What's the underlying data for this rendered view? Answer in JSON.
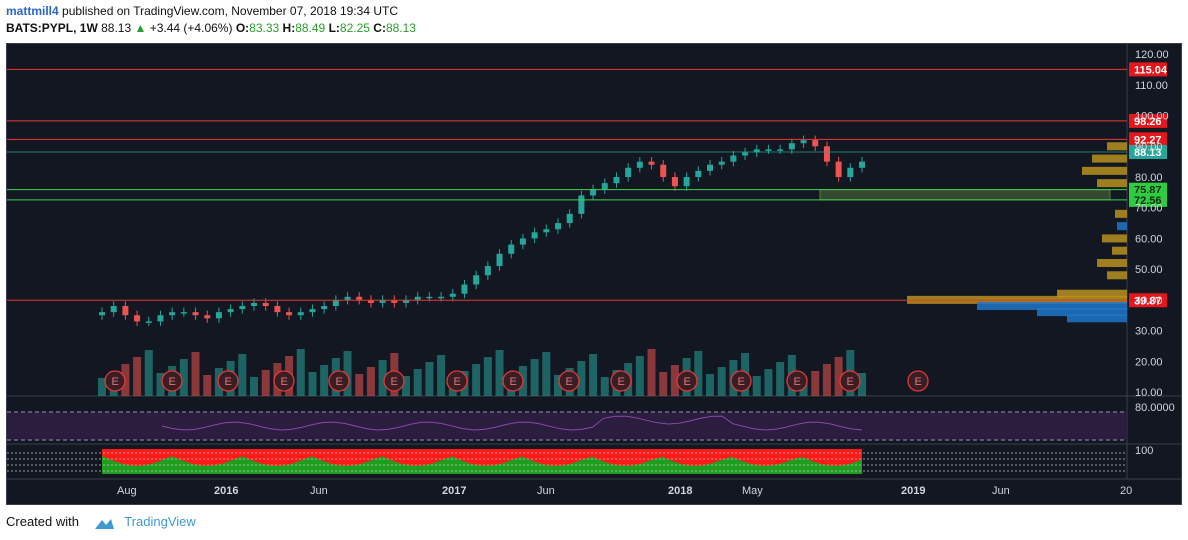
{
  "header": {
    "author": "mattmill4",
    "published_text": " published on TradingView.com, November 07, 2018 19:34 UTC",
    "symbol": "BATS:PYPL, 1W",
    "last": "88.13",
    "change": "+3.44 (+4.06%)",
    "open_label": "O:",
    "open": "83.33",
    "high_label": "H:",
    "high": "88.49",
    "low_label": "L:",
    "low": "82.25",
    "close_label": "C:",
    "close": "88.13"
  },
  "footer": {
    "created_with": "Created with",
    "brand": "TradingView"
  },
  "colors": {
    "background": "#131722",
    "up": "#26a69a",
    "down": "#ef5350",
    "level_line": "#e53935",
    "support_line": "#39d353",
    "rsi_line": "#8e44ad",
    "volume_profile_blue": "#1f77c9",
    "volume_profile_gold": "#b8901f"
  },
  "chart_data": {
    "type": "candlestick",
    "symbol": "BATS:PYPL",
    "interval": "1W",
    "ylim": [
      10,
      122
    ],
    "price_axis_ticks": [
      "120.00",
      "110.00",
      "100.00",
      "90.00",
      "80.00",
      "70.00",
      "60.00",
      "50.00",
      "40.00",
      "30.00",
      "20.00",
      "10.00"
    ],
    "x_axis_labels": [
      "Aug",
      "2016",
      "Jun",
      "2017",
      "Jun",
      "2018",
      "May",
      "2019",
      "Jun",
      "20"
    ],
    "horizontal_levels": [
      {
        "label": "115.04",
        "value": 115.04,
        "color": "#e53935"
      },
      {
        "label": "98.26",
        "value": 98.26,
        "color": "#e53935"
      },
      {
        "label": "92.27",
        "value": 92.27,
        "color": "#e53935"
      },
      {
        "label": "75.87",
        "value": 75.87,
        "color": "#39d353"
      },
      {
        "label": "72.56",
        "value": 72.56,
        "color": "#39d353"
      },
      {
        "label": "39.87",
        "value": 39.87,
        "color": "#e53935"
      }
    ],
    "last_price": {
      "label": "88.13",
      "value": 88.13
    },
    "close_series": {
      "t": [
        0,
        2,
        4,
        6,
        8,
        10,
        12,
        14,
        16,
        18,
        20,
        22,
        24,
        26,
        28,
        30,
        32,
        34,
        36,
        38,
        40,
        42,
        44,
        46,
        48,
        50,
        52,
        54,
        56,
        58,
        60,
        62,
        64,
        66,
        68,
        70,
        72,
        74,
        76,
        78,
        80,
        82,
        84,
        86,
        88,
        90,
        92,
        94,
        96,
        98,
        100,
        102,
        104,
        106,
        108,
        110,
        112,
        114,
        116,
        118,
        120,
        122,
        124,
        126,
        128,
        130,
        132,
        134,
        136,
        138,
        140,
        142,
        144,
        146,
        148,
        150,
        152,
        154,
        156,
        158,
        160,
        162,
        164,
        166,
        168,
        170,
        172,
        174,
        176,
        178,
        180,
        182,
        184,
        186,
        188,
        190,
        192,
        194
      ],
      "close": [
        36,
        38,
        35,
        33,
        33,
        35,
        36,
        36,
        35,
        34,
        36,
        37,
        38,
        39,
        38,
        36,
        35,
        36,
        37,
        38,
        40,
        41,
        40,
        39,
        40,
        39,
        40,
        41,
        41,
        41,
        42,
        45,
        48,
        51,
        55,
        58,
        60,
        62,
        63,
        65,
        68,
        74,
        76,
        78,
        80,
        83,
        85,
        84,
        80,
        77,
        80,
        82,
        84,
        85,
        87,
        88,
        89,
        89,
        89,
        91,
        92,
        90,
        85,
        80,
        83,
        85,
        88,
        88,
        88,
        88,
        88,
        88,
        88,
        88,
        88,
        88,
        88,
        88,
        88,
        88,
        88,
        88,
        88,
        88,
        88,
        88,
        88,
        88,
        88,
        88,
        88,
        88,
        88,
        88,
        88,
        88,
        88,
        88
      ]
    },
    "earnings_markers": {
      "label": "E",
      "count": 15
    },
    "rsi_label": "80.0000",
    "indicator_label": "100"
  }
}
